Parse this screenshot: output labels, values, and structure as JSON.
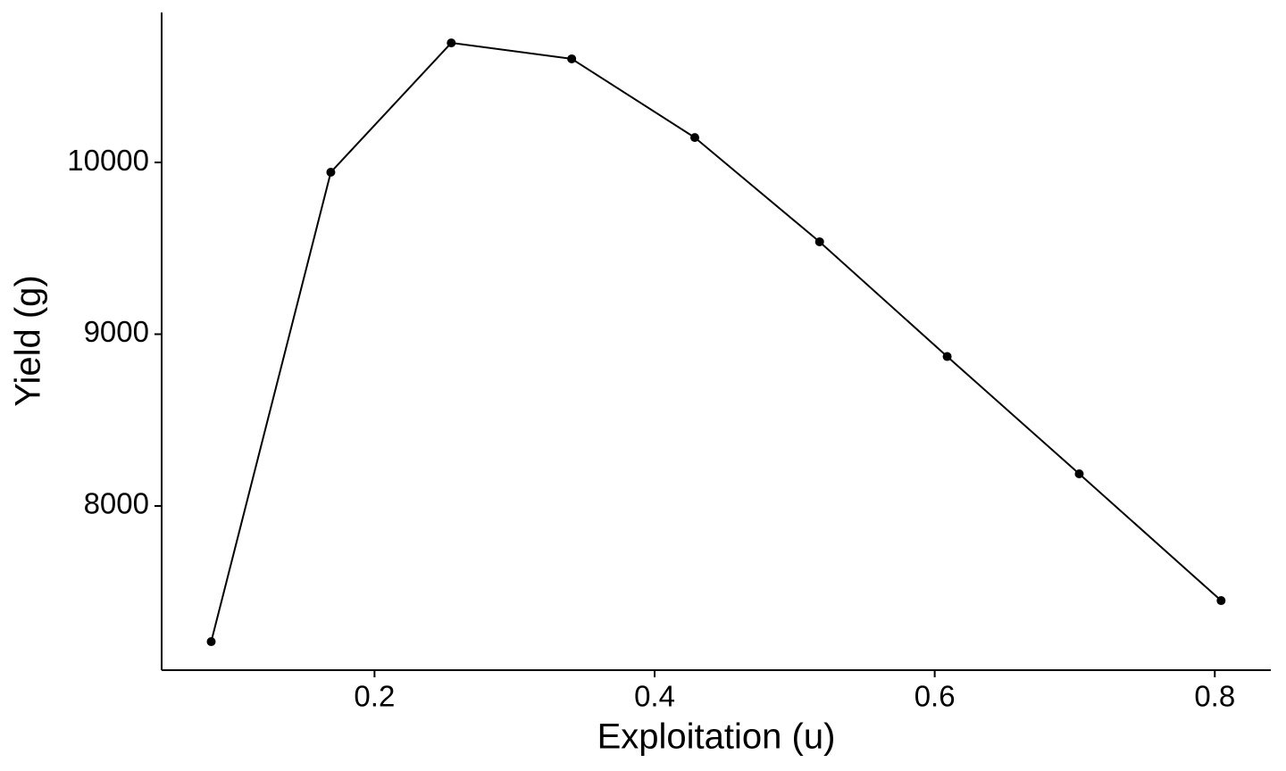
{
  "chart_data": {
    "type": "line",
    "xlabel": "Exploitation (u)",
    "ylabel": "Yield (g)",
    "x": [
      0.0834,
      0.1688,
      0.2548,
      0.3408,
      0.4287,
      0.5178,
      0.6089,
      0.7032,
      0.8045
    ],
    "y": [
      7210,
      9943,
      10696,
      10603,
      10145,
      9538,
      8870,
      8187,
      7449
    ],
    "color": "#000000",
    "xlim": [
      0.048,
      0.84
    ],
    "ylim": [
      7044,
      10873
    ],
    "xticks": [
      0.2,
      0.4,
      0.6,
      0.8
    ],
    "yticks": [
      8000,
      9000,
      10000
    ],
    "grid": false
  }
}
